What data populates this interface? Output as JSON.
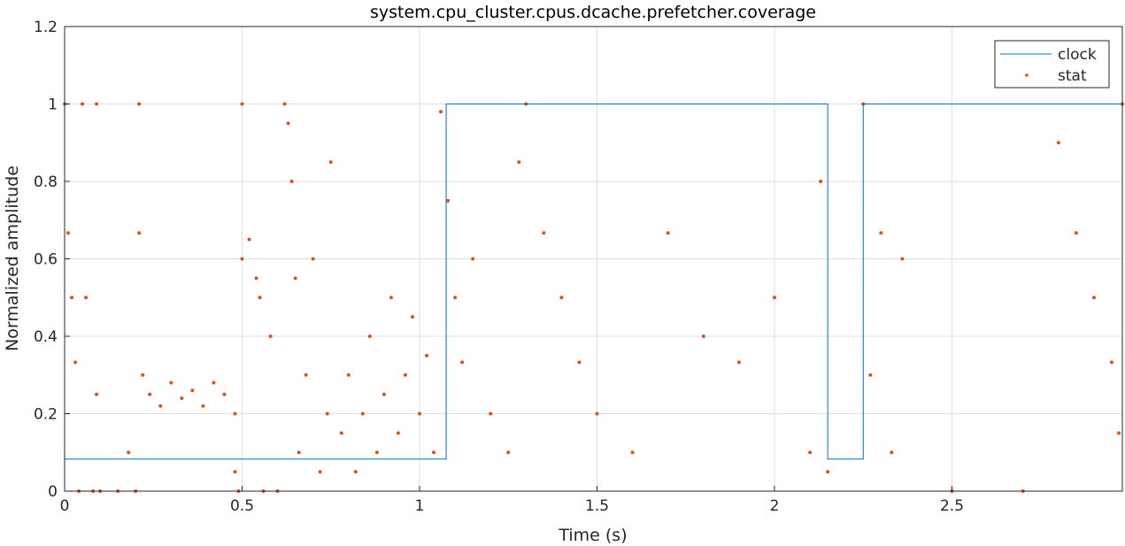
{
  "chart_data": {
    "type": "scatter",
    "title": "system.cpu_cluster.cpus.dcache.prefetcher.coverage",
    "xlabel": "Time (s)",
    "ylabel": "Normalized amplitude",
    "xlim": [
      0,
      2.98
    ],
    "ylim": [
      0,
      1.2
    ],
    "x_ticks": [
      0,
      0.5,
      1,
      1.5,
      2,
      2.5
    ],
    "x_tick_labels": [
      "0",
      "0.5",
      "1",
      "1.5",
      "2",
      "2.5"
    ],
    "y_ticks": [
      0,
      0.2,
      0.4,
      0.6,
      0.8,
      1,
      1.2
    ],
    "y_tick_labels": [
      "0",
      "0.2",
      "0.4",
      "0.6",
      "0.8",
      "1",
      "1.2"
    ],
    "grid": true,
    "legend": {
      "position": "top-right",
      "entries": [
        "clock",
        "stat"
      ]
    },
    "colors": {
      "clock": "#0072bd",
      "stat": "#d95319"
    },
    "series": [
      {
        "name": "clock",
        "style": "line",
        "x": [
          0,
          1.075,
          1.075,
          2.15,
          2.15,
          2.25,
          2.25,
          2.98
        ],
        "y": [
          0.083,
          0.083,
          1.0,
          1.0,
          0.083,
          0.083,
          1.0,
          1.0
        ]
      },
      {
        "name": "stat",
        "style": "markers",
        "points": [
          [
            0.0,
            1.0
          ],
          [
            0.01,
            0.667
          ],
          [
            0.02,
            0.5
          ],
          [
            0.03,
            0.333
          ],
          [
            0.04,
            0.0
          ],
          [
            0.05,
            1.0
          ],
          [
            0.06,
            0.5
          ],
          [
            0.08,
            0.0
          ],
          [
            0.09,
            1.0
          ],
          [
            0.09,
            0.25
          ],
          [
            0.1,
            0.0
          ],
          [
            0.15,
            0.0
          ],
          [
            0.18,
            0.1
          ],
          [
            0.2,
            0.0
          ],
          [
            0.21,
            1.0
          ],
          [
            0.21,
            0.667
          ],
          [
            0.22,
            0.3
          ],
          [
            0.24,
            0.25
          ],
          [
            0.27,
            0.22
          ],
          [
            0.3,
            0.28
          ],
          [
            0.33,
            0.24
          ],
          [
            0.36,
            0.26
          ],
          [
            0.39,
            0.22
          ],
          [
            0.42,
            0.28
          ],
          [
            0.45,
            0.25
          ],
          [
            0.48,
            0.2
          ],
          [
            0.48,
            0.05
          ],
          [
            0.49,
            0.0
          ],
          [
            0.5,
            1.0
          ],
          [
            0.5,
            0.6
          ],
          [
            0.52,
            0.65
          ],
          [
            0.54,
            0.55
          ],
          [
            0.55,
            0.5
          ],
          [
            0.56,
            0.0
          ],
          [
            0.58,
            0.4
          ],
          [
            0.6,
            0.0
          ],
          [
            0.62,
            1.0
          ],
          [
            0.63,
            0.95
          ],
          [
            0.64,
            0.8
          ],
          [
            0.65,
            0.55
          ],
          [
            0.66,
            0.1
          ],
          [
            0.68,
            0.3
          ],
          [
            0.7,
            0.6
          ],
          [
            0.72,
            0.05
          ],
          [
            0.74,
            0.2
          ],
          [
            0.75,
            0.85
          ],
          [
            0.78,
            0.15
          ],
          [
            0.8,
            0.3
          ],
          [
            0.82,
            0.05
          ],
          [
            0.84,
            0.2
          ],
          [
            0.86,
            0.4
          ],
          [
            0.88,
            0.1
          ],
          [
            0.9,
            0.25
          ],
          [
            0.92,
            0.5
          ],
          [
            0.94,
            0.15
          ],
          [
            0.96,
            0.3
          ],
          [
            0.98,
            0.45
          ],
          [
            1.0,
            0.2
          ],
          [
            1.02,
            0.35
          ],
          [
            1.04,
            0.1
          ],
          [
            1.06,
            0.98
          ],
          [
            1.08,
            0.75
          ],
          [
            1.1,
            0.5
          ],
          [
            1.12,
            0.333
          ],
          [
            1.15,
            0.6
          ],
          [
            1.2,
            0.2
          ],
          [
            1.25,
            0.1
          ],
          [
            1.28,
            0.85
          ],
          [
            1.3,
            1.0
          ],
          [
            1.35,
            0.667
          ],
          [
            1.4,
            0.5
          ],
          [
            1.45,
            0.333
          ],
          [
            1.5,
            0.2
          ],
          [
            1.6,
            0.1
          ],
          [
            1.7,
            0.667
          ],
          [
            1.8,
            0.4
          ],
          [
            1.9,
            0.333
          ],
          [
            2.0,
            0.5
          ],
          [
            2.1,
            0.1
          ],
          [
            2.13,
            0.8
          ],
          [
            2.15,
            0.05
          ],
          [
            2.25,
            1.0
          ],
          [
            2.27,
            0.3
          ],
          [
            2.3,
            0.667
          ],
          [
            2.33,
            0.1
          ],
          [
            2.36,
            0.6
          ],
          [
            2.5,
            0.0
          ],
          [
            2.7,
            0.0
          ],
          [
            2.8,
            0.9
          ],
          [
            2.85,
            0.667
          ],
          [
            2.9,
            0.5
          ],
          [
            2.95,
            0.333
          ],
          [
            2.97,
            0.15
          ],
          [
            2.98,
            1.0
          ]
        ]
      }
    ]
  }
}
